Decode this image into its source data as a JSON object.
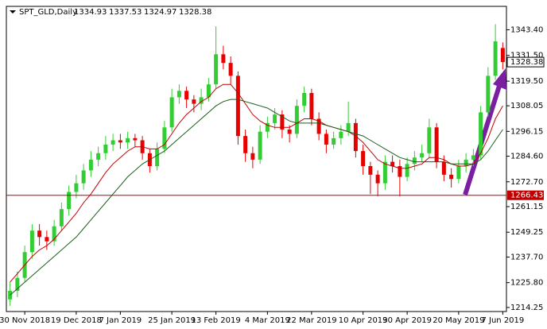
{
  "chart_data": {
    "type": "candlestick",
    "title": "SPT_GLD,Daily",
    "open": [
      1218,
      1222,
      1228,
      1240,
      1250,
      1247,
      1245,
      1252,
      1260,
      1268,
      1272,
      1278,
      1283,
      1286,
      1290,
      1292,
      1291,
      1293,
      1292,
      1286,
      1280,
      1288,
      1298,
      1312,
      1315,
      1311,
      1309,
      1312,
      1318,
      1332,
      1328,
      1322,
      1294,
      1286,
      1283,
      1296,
      1300,
      1304,
      1297,
      1295,
      1308,
      1314,
      1302,
      1295,
      1290,
      1293,
      1296,
      1300,
      1287,
      1280,
      1276,
      1272,
      1282,
      1280,
      1275,
      1281,
      1284,
      1286,
      1298,
      1282,
      1276,
      1274,
      1280,
      1283,
      1285,
      1305,
      1322,
      1334.93
    ],
    "high": [
      1226,
      1231,
      1243,
      1253,
      1253,
      1250,
      1255,
      1263,
      1271,
      1276,
      1281,
      1287,
      1289,
      1294,
      1295,
      1295,
      1296,
      1295,
      1294,
      1288,
      1291,
      1301,
      1316,
      1318,
      1317,
      1313,
      1316,
      1321,
      1345,
      1336,
      1331,
      1324,
      1297,
      1289,
      1299,
      1303,
      1307,
      1306,
      1299,
      1311,
      1317,
      1316,
      1305,
      1297,
      1296,
      1299,
      1310,
      1302,
      1290,
      1282,
      1278,
      1285,
      1285,
      1283,
      1284,
      1287,
      1290,
      1302,
      1300,
      1285,
      1279,
      1283,
      1286,
      1288,
      1308,
      1326,
      1346,
      1337.53
    ],
    "low": [
      1215,
      1219,
      1226,
      1237,
      1243,
      1241,
      1243,
      1250,
      1257,
      1265,
      1269,
      1275,
      1280,
      1283,
      1287,
      1288,
      1288,
      1289,
      1283,
      1277,
      1278,
      1286,
      1296,
      1309,
      1307,
      1305,
      1306,
      1310,
      1316,
      1325,
      1318,
      1290,
      1282,
      1279,
      1281,
      1293,
      1297,
      1293,
      1291,
      1293,
      1305,
      1299,
      1292,
      1286,
      1288,
      1290,
      1294,
      1284,
      1276,
      1267,
      1266,
      1269,
      1277,
      1266,
      1273,
      1278,
      1282,
      1284,
      1279,
      1273,
      1270,
      1272,
      1277,
      1280,
      1283,
      1303,
      1320,
      1324.97
    ],
    "close": [
      1222,
      1228,
      1240,
      1250,
      1247,
      1245,
      1252,
      1260,
      1268,
      1272,
      1278,
      1283,
      1286,
      1290,
      1292,
      1291,
      1293,
      1292,
      1286,
      1280,
      1288,
      1298,
      1312,
      1315,
      1311,
      1309,
      1312,
      1318,
      1332,
      1328,
      1322,
      1294,
      1286,
      1283,
      1296,
      1300,
      1304,
      1297,
      1295,
      1308,
      1314,
      1302,
      1295,
      1290,
      1293,
      1296,
      1300,
      1287,
      1280,
      1276,
      1272,
      1282,
      1280,
      1275,
      1281,
      1284,
      1286,
      1298,
      1282,
      1276,
      1274,
      1280,
      1283,
      1285,
      1305,
      1322,
      1338,
      1328.38
    ],
    "bull_color": "#32cd32",
    "bear_color": "#e60000",
    "moving_averages": [
      {
        "color": "#c00000",
        "values": [
          1226,
          1230,
          1234,
          1238,
          1241,
          1243,
          1246,
          1250,
          1254,
          1258,
          1263,
          1267,
          1272,
          1277,
          1281,
          1284,
          1287,
          1289,
          1289,
          1288,
          1288,
          1290,
          1295,
          1300,
          1304,
          1307,
          1310,
          1312,
          1316,
          1318,
          1318,
          1314,
          1309,
          1304,
          1301,
          1299,
          1298,
          1298,
          1298,
          1300,
          1302,
          1302,
          1301,
          1299,
          1298,
          1297,
          1296,
          1294,
          1291,
          1287,
          1283,
          1281,
          1280,
          1279,
          1279,
          1280,
          1281,
          1284,
          1284,
          1283,
          1281,
          1280,
          1280,
          1281,
          1286,
          1293,
          1302,
          1308
        ]
      },
      {
        "color": "#1a5e1a",
        "values": [
          1220,
          1223,
          1226,
          1229,
          1232,
          1235,
          1238,
          1241,
          1244,
          1247,
          1251,
          1255,
          1259,
          1263,
          1267,
          1271,
          1275,
          1278,
          1281,
          1283,
          1285,
          1287,
          1290,
          1293,
          1296,
          1299,
          1302,
          1305,
          1308,
          1310,
          1311,
          1311,
          1310,
          1309,
          1308,
          1307,
          1305,
          1303,
          1301,
          1300,
          1300,
          1300,
          1300,
          1299,
          1298,
          1297,
          1296,
          1295,
          1294,
          1292,
          1290,
          1288,
          1286,
          1284,
          1283,
          1282,
          1282,
          1282,
          1282,
          1282,
          1281,
          1281,
          1281,
          1281,
          1283,
          1287,
          1292,
          1297
        ]
      }
    ],
    "hline": {
      "value": 1266.43,
      "color": "#c00000"
    },
    "ylim": [
      1212.37,
      1354.29
    ],
    "yticks": [
      {
        "value": 1214.25,
        "label": "1214.25"
      },
      {
        "value": 1225.8,
        "label": "1225.80"
      },
      {
        "value": 1237.7,
        "label": "1237.70"
      },
      1249.25,
      1261.15,
      {
        "value": 1272.7,
        "label": "1272.70"
      },
      {
        "value": 1284.6,
        "label": "1284.60"
      },
      1296.15,
      1308.05,
      {
        "value": 1319.5,
        "label": "1319.50"
      },
      {
        "value": 1331.5,
        "label": "1331.50"
      },
      {
        "value": 1343.4,
        "label": "1343.40"
      }
    ],
    "xticks": [
      {
        "value": 2,
        "label": "30 Nov 2018"
      },
      {
        "value": 9,
        "label": "19 Dec 2018"
      },
      {
        "value": 15,
        "label": "7 Jan 2019"
      },
      {
        "value": 22,
        "label": "25 Jan 2019"
      },
      {
        "value": 28,
        "label": "13 Feb 2019"
      },
      {
        "value": 35,
        "label": "4 Mar 2019"
      },
      {
        "value": 41,
        "label": "22 Mar 2019"
      },
      {
        "value": 48,
        "label": "10 Apr 2019"
      },
      {
        "value": 54,
        "label": "30 Apr 2019"
      },
      {
        "value": 61,
        "label": "20 May 2019"
      },
      {
        "value": 67,
        "label": "7 Jun 2019"
      }
    ]
  }
}
